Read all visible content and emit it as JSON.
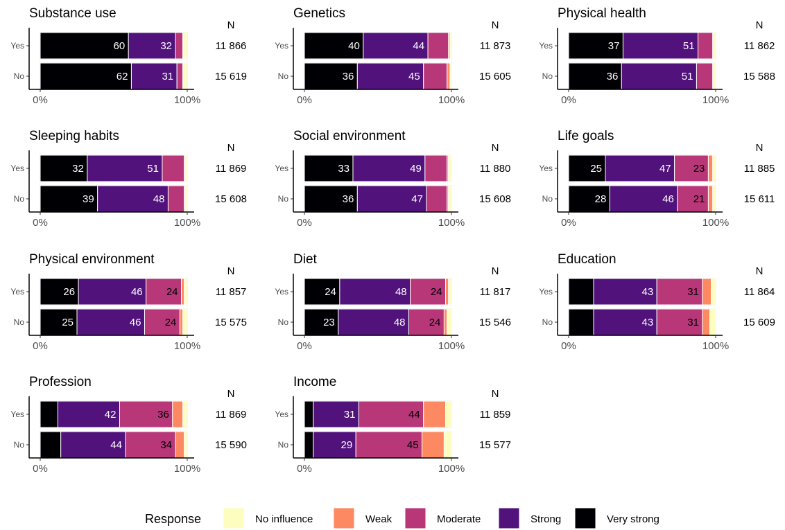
{
  "chart_data": [
    {
      "type": "bar",
      "title": "Substance use",
      "n_header": "N",
      "categories": [
        "Yes",
        "No"
      ],
      "n_values": [
        "11 866",
        "15 619"
      ],
      "series": [
        {
          "name": "Very strong",
          "values": [
            60,
            62
          ]
        },
        {
          "name": "Strong",
          "values": [
            32,
            31
          ]
        },
        {
          "name": "Moderate",
          "values": [
            5,
            4
          ]
        },
        {
          "name": "Weak",
          "values": [
            0.5,
            0.5
          ]
        },
        {
          "name": "No influence",
          "values": [
            2.5,
            2.5
          ]
        }
      ],
      "labels": [
        [
          "60",
          "32",
          "",
          "",
          ""
        ],
        [
          "62",
          "31",
          "",
          "",
          ""
        ]
      ],
      "xticks": [
        "0%",
        "100%"
      ],
      "xlim": [
        0,
        100
      ]
    },
    {
      "type": "bar",
      "title": "Genetics",
      "n_header": "N",
      "categories": [
        "Yes",
        "No"
      ],
      "n_values": [
        "11 873",
        "15 605"
      ],
      "series": [
        {
          "name": "Very strong",
          "values": [
            40,
            36
          ]
        },
        {
          "name": "Strong",
          "values": [
            44,
            45
          ]
        },
        {
          "name": "Moderate",
          "values": [
            14,
            16
          ]
        },
        {
          "name": "Weak",
          "values": [
            1,
            2
          ]
        },
        {
          "name": "No influence",
          "values": [
            1,
            1
          ]
        }
      ],
      "labels": [
        [
          "40",
          "44",
          "",
          "",
          ""
        ],
        [
          "36",
          "45",
          "",
          "",
          ""
        ]
      ],
      "xticks": [
        "0%",
        "100%"
      ],
      "xlim": [
        0,
        100
      ]
    },
    {
      "type": "bar",
      "title": "Physical health",
      "n_header": "N",
      "categories": [
        "Yes",
        "No"
      ],
      "n_values": [
        "11 862",
        "15 588"
      ],
      "series": [
        {
          "name": "Very strong",
          "values": [
            37,
            36
          ]
        },
        {
          "name": "Strong",
          "values": [
            51,
            51
          ]
        },
        {
          "name": "Moderate",
          "values": [
            10,
            11
          ]
        },
        {
          "name": "Weak",
          "values": [
            0.5,
            0.5
          ]
        },
        {
          "name": "No influence",
          "values": [
            1.5,
            1.5
          ]
        }
      ],
      "labels": [
        [
          "37",
          "51",
          "",
          "",
          ""
        ],
        [
          "36",
          "51",
          "",
          "",
          ""
        ]
      ],
      "xticks": [
        "0%",
        "100%"
      ],
      "xlim": [
        0,
        100
      ]
    },
    {
      "type": "bar",
      "title": "Sleeping habits",
      "n_header": "N",
      "categories": [
        "Yes",
        "No"
      ],
      "n_values": [
        "11 869",
        "15 608"
      ],
      "series": [
        {
          "name": "Very strong",
          "values": [
            32,
            39
          ]
        },
        {
          "name": "Strong",
          "values": [
            51,
            48
          ]
        },
        {
          "name": "Moderate",
          "values": [
            15,
            11
          ]
        },
        {
          "name": "Weak",
          "values": [
            0.5,
            0.5
          ]
        },
        {
          "name": "No influence",
          "values": [
            1.5,
            1.5
          ]
        }
      ],
      "labels": [
        [
          "32",
          "51",
          "",
          "",
          ""
        ],
        [
          "39",
          "48",
          "",
          "",
          ""
        ]
      ],
      "xticks": [
        "0%",
        "100%"
      ],
      "xlim": [
        0,
        100
      ]
    },
    {
      "type": "bar",
      "title": "Social environment",
      "n_header": "N",
      "categories": [
        "Yes",
        "No"
      ],
      "n_values": [
        "11 880",
        "15 608"
      ],
      "series": [
        {
          "name": "Very strong",
          "values": [
            33,
            36
          ]
        },
        {
          "name": "Strong",
          "values": [
            49,
            47
          ]
        },
        {
          "name": "Moderate",
          "values": [
            15,
            14
          ]
        },
        {
          "name": "Weak",
          "values": [
            1,
            1
          ]
        },
        {
          "name": "No influence",
          "values": [
            2,
            2
          ]
        }
      ],
      "labels": [
        [
          "33",
          "49",
          "",
          "",
          ""
        ],
        [
          "36",
          "47",
          "",
          "",
          ""
        ]
      ],
      "xticks": [
        "0%",
        "100%"
      ],
      "xlim": [
        0,
        100
      ]
    },
    {
      "type": "bar",
      "title": "Life goals",
      "n_header": "N",
      "categories": [
        "Yes",
        "No"
      ],
      "n_values": [
        "11 885",
        "15 611"
      ],
      "series": [
        {
          "name": "Very strong",
          "values": [
            25,
            28
          ]
        },
        {
          "name": "Strong",
          "values": [
            47,
            46
          ]
        },
        {
          "name": "Moderate",
          "values": [
            23,
            21
          ]
        },
        {
          "name": "Weak",
          "values": [
            3,
            3
          ]
        },
        {
          "name": "No influence",
          "values": [
            2,
            2
          ]
        }
      ],
      "labels": [
        [
          "25",
          "47",
          "23",
          "",
          ""
        ],
        [
          "28",
          "46",
          "21",
          "",
          ""
        ]
      ],
      "xticks": [
        "0%",
        "100%"
      ],
      "xlim": [
        0,
        100
      ]
    },
    {
      "type": "bar",
      "title": "Physical environment",
      "n_header": "N",
      "categories": [
        "Yes",
        "No"
      ],
      "n_values": [
        "11 857",
        "15 575"
      ],
      "series": [
        {
          "name": "Very strong",
          "values": [
            26,
            25
          ]
        },
        {
          "name": "Strong",
          "values": [
            46,
            46
          ]
        },
        {
          "name": "Moderate",
          "values": [
            24,
            24
          ]
        },
        {
          "name": "Weak",
          "values": [
            2,
            2
          ]
        },
        {
          "name": "No influence",
          "values": [
            2,
            3
          ]
        }
      ],
      "labels": [
        [
          "26",
          "46",
          "24",
          "",
          ""
        ],
        [
          "25",
          "46",
          "24",
          "",
          ""
        ]
      ],
      "xticks": [
        "0%",
        "100%"
      ],
      "xlim": [
        0,
        100
      ]
    },
    {
      "type": "bar",
      "title": "Diet",
      "n_header": "N",
      "categories": [
        "Yes",
        "No"
      ],
      "n_values": [
        "11 817",
        "15 546"
      ],
      "series": [
        {
          "name": "Very strong",
          "values": [
            24,
            23
          ]
        },
        {
          "name": "Strong",
          "values": [
            48,
            48
          ]
        },
        {
          "name": "Moderate",
          "values": [
            24,
            24
          ]
        },
        {
          "name": "Weak",
          "values": [
            2,
            2
          ]
        },
        {
          "name": "No influence",
          "values": [
            2,
            3
          ]
        }
      ],
      "labels": [
        [
          "24",
          "48",
          "24",
          "",
          ""
        ],
        [
          "23",
          "48",
          "24",
          "",
          ""
        ]
      ],
      "xticks": [
        "0%",
        "100%"
      ],
      "xlim": [
        0,
        100
      ]
    },
    {
      "type": "bar",
      "title": "Education",
      "n_header": "N",
      "categories": [
        "Yes",
        "No"
      ],
      "n_values": [
        "11 864",
        "15 609"
      ],
      "series": [
        {
          "name": "Very strong",
          "values": [
            17,
            17
          ]
        },
        {
          "name": "Strong",
          "values": [
            43,
            43
          ]
        },
        {
          "name": "Moderate",
          "values": [
            31,
            31
          ]
        },
        {
          "name": "Weak",
          "values": [
            6,
            5
          ]
        },
        {
          "name": "No influence",
          "values": [
            3,
            4
          ]
        }
      ],
      "labels": [
        [
          "",
          "43",
          "31",
          "",
          ""
        ],
        [
          "",
          "43",
          "31",
          "",
          ""
        ]
      ],
      "xticks": [
        "0%",
        "100%"
      ],
      "xlim": [
        0,
        100
      ]
    },
    {
      "type": "bar",
      "title": "Profession",
      "n_header": "N",
      "categories": [
        "Yes",
        "No"
      ],
      "n_values": [
        "11 869",
        "15 590"
      ],
      "series": [
        {
          "name": "Very strong",
          "values": [
            12,
            14
          ]
        },
        {
          "name": "Strong",
          "values": [
            42,
            44
          ]
        },
        {
          "name": "Moderate",
          "values": [
            36,
            34
          ]
        },
        {
          "name": "Weak",
          "values": [
            7,
            6
          ]
        },
        {
          "name": "No influence",
          "values": [
            3,
            2
          ]
        }
      ],
      "labels": [
        [
          "",
          "42",
          "36",
          "",
          ""
        ],
        [
          "",
          "44",
          "34",
          "",
          ""
        ]
      ],
      "xticks": [
        "0%",
        "100%"
      ],
      "xlim": [
        0,
        100
      ]
    },
    {
      "type": "bar",
      "title": "Income",
      "n_header": "N",
      "categories": [
        "Yes",
        "No"
      ],
      "n_values": [
        "11 859",
        "15 577"
      ],
      "series": [
        {
          "name": "Very strong",
          "values": [
            6,
            6
          ]
        },
        {
          "name": "Strong",
          "values": [
            31,
            29
          ]
        },
        {
          "name": "Moderate",
          "values": [
            44,
            45
          ]
        },
        {
          "name": "Weak",
          "values": [
            15,
            15
          ]
        },
        {
          "name": "No influence",
          "values": [
            4,
            5
          ]
        }
      ],
      "labels": [
        [
          "",
          "31",
          "44",
          "",
          ""
        ],
        [
          "",
          "29",
          "45",
          "",
          ""
        ]
      ],
      "xticks": [
        "0%",
        "100%"
      ],
      "xlim": [
        0,
        100
      ]
    }
  ],
  "legend": {
    "title": "Response",
    "position": "bottom",
    "items": [
      {
        "label": "No influence",
        "color": "#fcfdbf"
      },
      {
        "label": "Weak",
        "color": "#fc8961"
      },
      {
        "label": "Moderate",
        "color": "#b73779"
      },
      {
        "label": "Strong",
        "color": "#51127c"
      },
      {
        "label": "Very strong",
        "color": "#000004"
      }
    ]
  },
  "colors": {
    "Very strong": "#000004",
    "Strong": "#51127c",
    "Moderate": "#b73779",
    "Weak": "#fc8961",
    "No influence": "#fcfdbf",
    "label_light": "#ffffff",
    "label_dark": "#000000"
  }
}
